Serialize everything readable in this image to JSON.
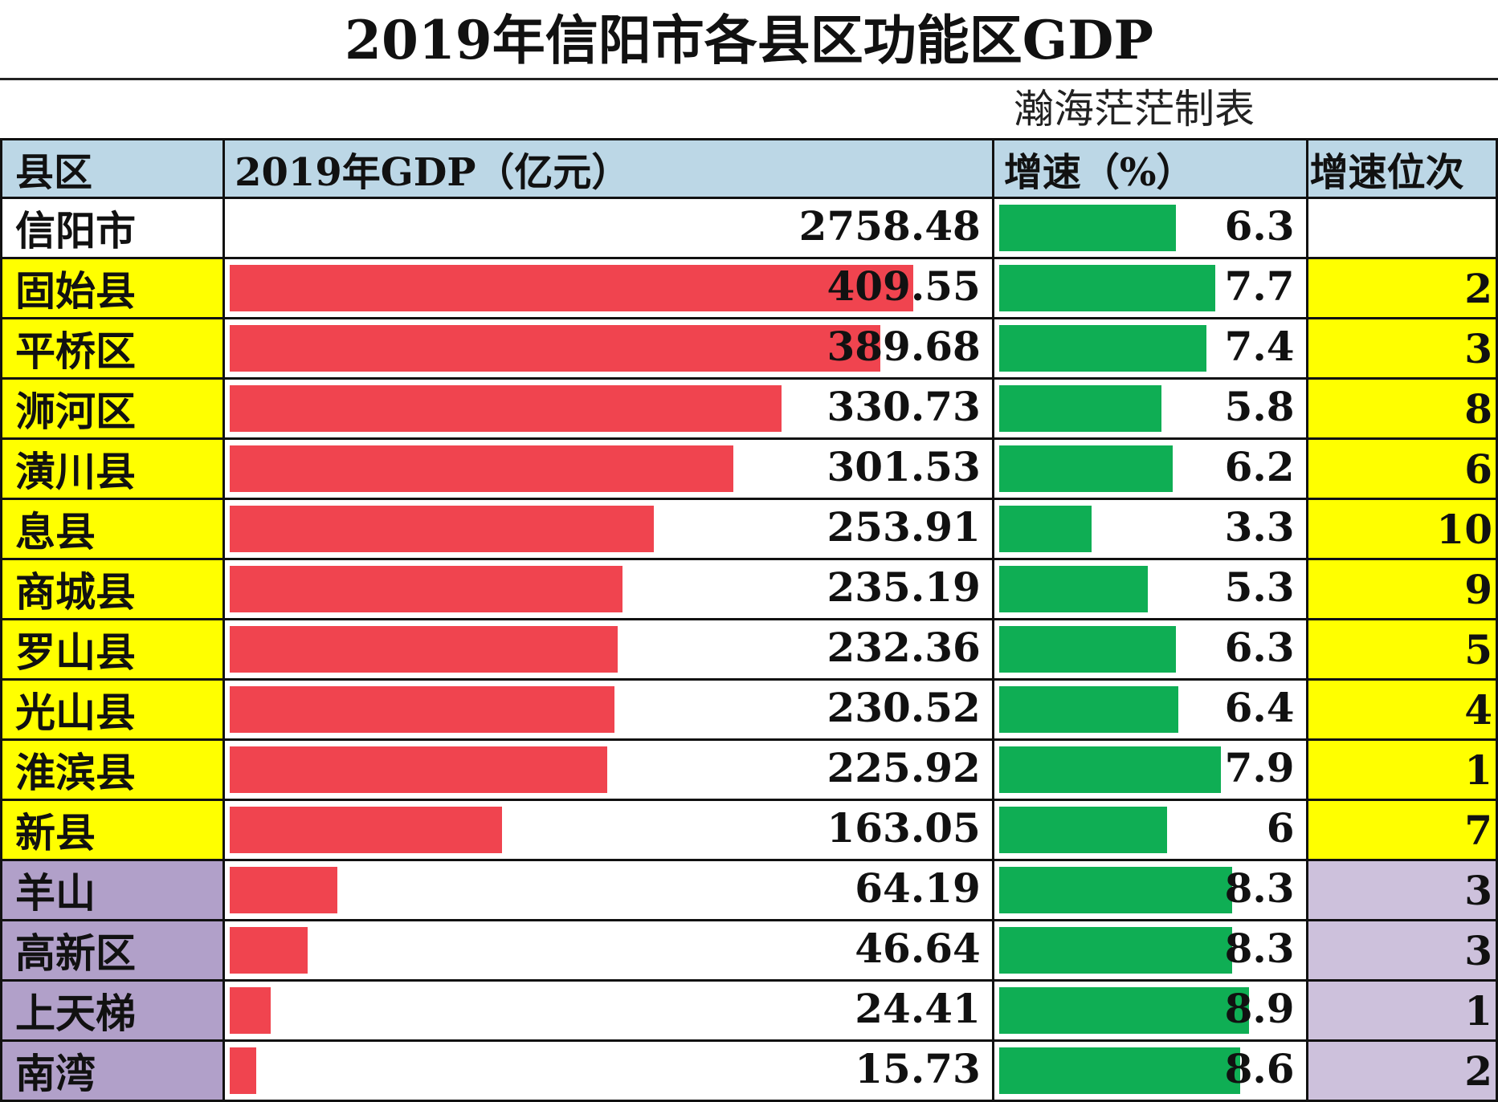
{
  "chart_data": {
    "type": "table",
    "title": "2019年信阳市各县区功能区GDP",
    "credit": "瀚海茫茫制表",
    "columns": [
      "县区",
      "2019年GDP（亿元）",
      "增速（%）",
      "增速位次"
    ],
    "colors": {
      "gdp_bar": "#f0444f",
      "growth_bar": "#0fae54",
      "county_fill": "#ffff00",
      "zone_fill": "#b1a0c9",
      "header_fill": "#bcd7e6"
    },
    "rows": [
      {
        "name": "信阳市",
        "gdp": "2758.48",
        "growth": "6.3",
        "rank": "",
        "group": "city"
      },
      {
        "name": "固始县",
        "gdp": "409.55",
        "growth": "7.7",
        "rank": "2",
        "group": "county"
      },
      {
        "name": "平桥区",
        "gdp": "389.68",
        "growth": "7.4",
        "rank": "3",
        "group": "county"
      },
      {
        "name": "浉河区",
        "gdp": "330.73",
        "growth": "5.8",
        "rank": "8",
        "group": "county"
      },
      {
        "name": "潢川县",
        "gdp": "301.53",
        "growth": "6.2",
        "rank": "6",
        "group": "county"
      },
      {
        "name": "息县",
        "gdp": "253.91",
        "growth": "3.3",
        "rank": "10",
        "group": "county"
      },
      {
        "name": "商城县",
        "gdp": "235.19",
        "growth": "5.3",
        "rank": "9",
        "group": "county"
      },
      {
        "name": "罗山县",
        "gdp": "232.36",
        "growth": "6.3",
        "rank": "5",
        "group": "county"
      },
      {
        "name": "光山县",
        "gdp": "230.52",
        "growth": "6.4",
        "rank": "4",
        "group": "county"
      },
      {
        "name": "淮滨县",
        "gdp": "225.92",
        "growth": "7.9",
        "rank": "1",
        "group": "county"
      },
      {
        "name": "新县",
        "gdp": "163.05",
        "growth": "6",
        "rank": "7",
        "group": "county"
      },
      {
        "name": "羊山",
        "gdp": "64.19",
        "growth": "8.3",
        "rank": "3",
        "group": "zone"
      },
      {
        "name": "高新区",
        "gdp": "46.64",
        "growth": "8.3",
        "rank": "3",
        "group": "zone"
      },
      {
        "name": "上天梯",
        "gdp": "24.41",
        "growth": "8.9",
        "rank": "1",
        "group": "zone"
      },
      {
        "name": "南湾",
        "gdp": "15.73",
        "growth": "8.6",
        "rank": "2",
        "group": "zone"
      }
    ]
  }
}
